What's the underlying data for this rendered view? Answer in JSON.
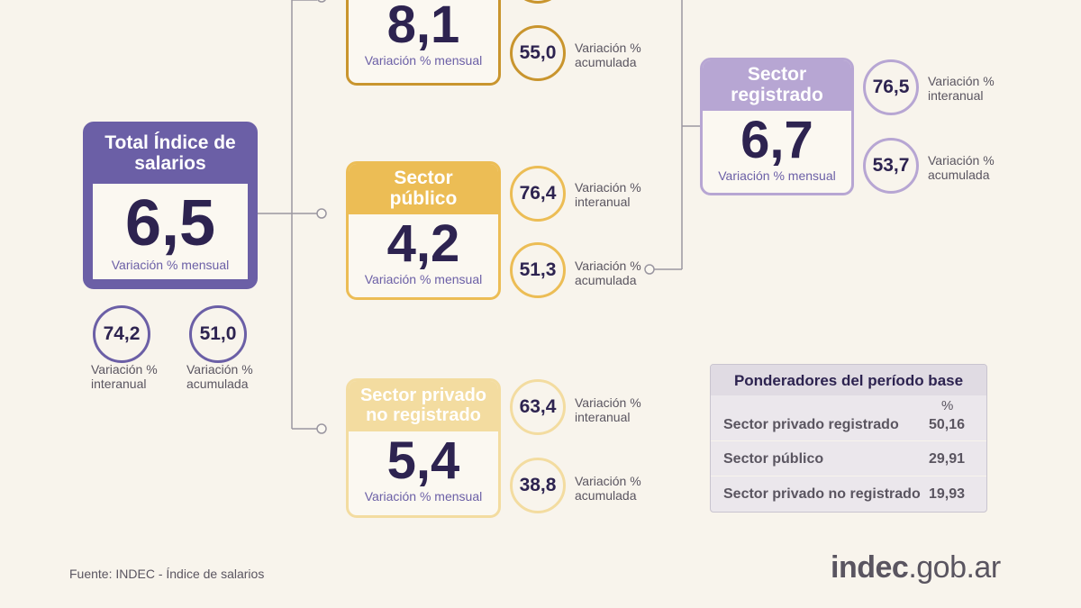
{
  "total": {
    "title": "Total Índice de salarios",
    "value": "6,5",
    "caption": "Variación % mensual",
    "interanual": "74,2",
    "interanual_label": "Variación % interanual",
    "acumulada": "51,0",
    "acumulada_label": "Variación % acumulada"
  },
  "privado_registrado": {
    "value": "8,1",
    "caption": "Variación % mensual",
    "acumulada": "55,0",
    "acumulada_label": "Variación % acumulada"
  },
  "publico": {
    "title": "Sector público",
    "value": "4,2",
    "caption": "Variación % mensual",
    "interanual": "76,4",
    "interanual_label": "Variación % interanual",
    "acumulada": "51,3",
    "acumulada_label": "Variación % acumulada"
  },
  "no_registrado": {
    "title": "Sector privado no registrado",
    "value": "5,4",
    "caption": "Variación % mensual",
    "interanual": "63,4",
    "interanual_label": "Variación % interanual",
    "acumulada": "38,8",
    "acumulada_label": "Variación % acumulada"
  },
  "registrado": {
    "title": "Sector registrado",
    "value": "6,7",
    "caption": "Variación % mensual",
    "interanual": "76,5",
    "interanual_label": "Variación % interanual",
    "acumulada": "53,7",
    "acumulada_label": "Variación % acumulada"
  },
  "ponderadores": {
    "title": "Ponderadores del período base",
    "unit": "%",
    "rows": [
      {
        "label": "Sector privado registrado",
        "value": "50,16"
      },
      {
        "label": "Sector público",
        "value": "29,91"
      },
      {
        "label": "Sector privado no registrado",
        "value": "19,93"
      }
    ]
  },
  "source": "Fuente: INDEC - Índice de salarios",
  "logo": {
    "part1": "indec",
    "part2": ".gob.ar"
  },
  "colors": {
    "total": "#6b5fa6",
    "privado_registrado": "#c9952e",
    "publico": "#ecbd55",
    "no_registrado": "#f3dca0",
    "registrado": "#b7a6d3",
    "text": "#2d2350"
  }
}
